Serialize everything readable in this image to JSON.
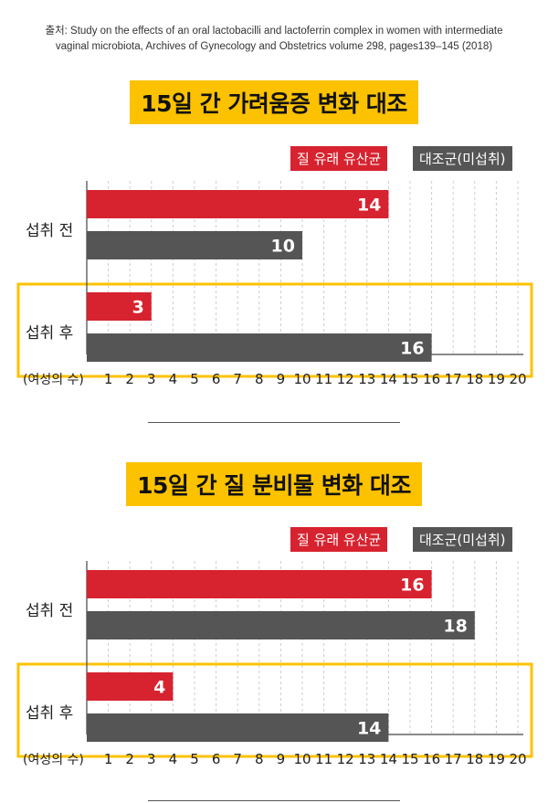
{
  "source": {
    "line1": "출처: Study on the effects of an oral lactobacilli and lactoferrin complex in women with intermediate",
    "line2": "vaginal microbiota, Archives of Gynecology and Obstetrics volume 298, pages139–145 (2018)"
  },
  "colors": {
    "accent_red": "#d7232f",
    "control_gray": "#555555",
    "highlight": "#fcc200"
  },
  "chart_data": [
    {
      "type": "bar",
      "orientation": "horizontal",
      "title": "15일 간 가려움증 변화 대조",
      "categories": [
        "섭취 전",
        "섭취 후"
      ],
      "highlighted_category": "섭취 후",
      "series": [
        {
          "name": "질 유래 유산균",
          "color": "#d7232f",
          "values": [
            14,
            3
          ]
        },
        {
          "name": "대조군(미섭취)",
          "color": "#555555",
          "values": [
            10,
            16
          ]
        }
      ],
      "xlabel": "(여성의 수)",
      "xlim": [
        0,
        20
      ],
      "xticks": [
        1,
        2,
        3,
        4,
        5,
        6,
        7,
        8,
        9,
        10,
        11,
        12,
        13,
        14,
        15,
        16,
        17,
        18,
        19,
        20
      ],
      "grid": true,
      "legend": "top-right"
    },
    {
      "type": "bar",
      "orientation": "horizontal",
      "title": "15일 간 질 분비물 변화 대조",
      "categories": [
        "섭취 전",
        "섭취 후"
      ],
      "highlighted_category": "섭취 후",
      "series": [
        {
          "name": "질 유래 유산균",
          "color": "#d7232f",
          "values": [
            16,
            4
          ]
        },
        {
          "name": "대조군(미섭취)",
          "color": "#555555",
          "values": [
            18,
            14
          ]
        }
      ],
      "xlabel": "(여성의 수)",
      "xlim": [
        0,
        20
      ],
      "xticks": [
        1,
        2,
        3,
        4,
        5,
        6,
        7,
        8,
        9,
        10,
        11,
        12,
        13,
        14,
        15,
        16,
        17,
        18,
        19,
        20
      ],
      "grid": true,
      "legend": "top-right"
    }
  ]
}
